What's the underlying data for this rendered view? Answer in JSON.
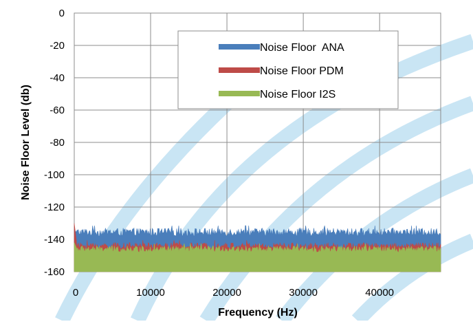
{
  "chart_data": {
    "type": "area",
    "title": "",
    "xlabel": "Frequency (Hz)",
    "ylabel": "Noise Floor Level (db)",
    "xlim": [
      0,
      48000
    ],
    "ylim": [
      -160,
      0
    ],
    "x_ticks": [
      0,
      10000,
      20000,
      30000,
      40000
    ],
    "x_tick_labels": [
      "0",
      "10000",
      "20000",
      "30000",
      "40000"
    ],
    "y_ticks": [
      0,
      -20,
      -40,
      -60,
      -80,
      -100,
      -120,
      -140,
      -160
    ],
    "y_tick_labels": [
      "0",
      "-20",
      "-40",
      "-60",
      "-80",
      "-100",
      "-120",
      "-140",
      "-160"
    ],
    "grid": true,
    "legend_position": "top-right",
    "series": [
      {
        "name": "Noise Floor  ANA",
        "color": "#4a7ebb",
        "start_peak": -134,
        "level_top_range": [
          -138,
          -133
        ],
        "level_mean_top": -136
      },
      {
        "name": "Noise Floor PDM",
        "color": "#be4b48",
        "start_peak": -130,
        "level_top_range": [
          -146,
          -142
        ],
        "level_mean_top": -144
      },
      {
        "name": "Noise Floor I2S",
        "color": "#98b954",
        "start_peak": -142,
        "level_top_range": [
          -148,
          -144
        ],
        "level_mean_top": -146
      }
    ],
    "background_arcs_color": "#bfe0f2"
  }
}
